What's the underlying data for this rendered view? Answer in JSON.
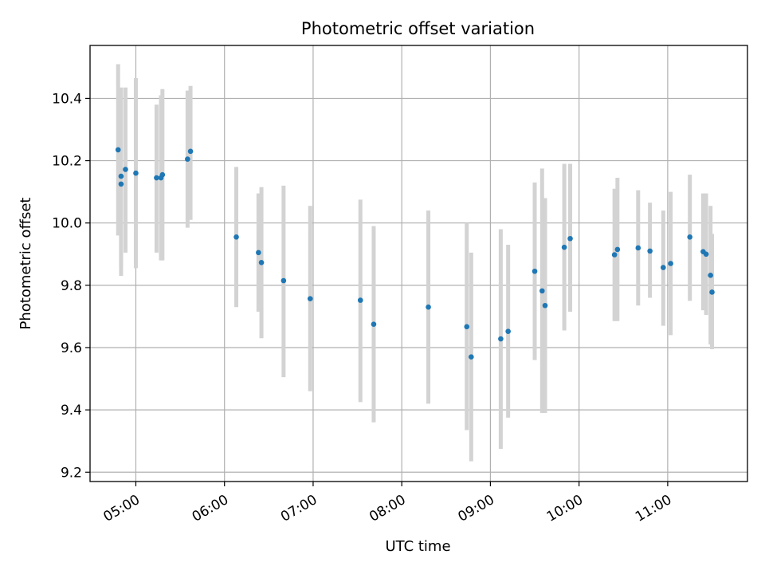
{
  "chart_data": {
    "type": "scatter",
    "title": "Photometric offset variation",
    "xlabel": "UTC time",
    "ylabel": "Photometric offset",
    "x_axis_type": "time",
    "xlim": [
      "04:29",
      "11:54"
    ],
    "ylim": [
      9.17,
      10.57
    ],
    "x_ticks": [
      "05:00",
      "06:00",
      "07:00",
      "08:00",
      "09:00",
      "10:00",
      "11:00"
    ],
    "y_ticks": [
      9.2,
      9.4,
      9.6,
      9.8,
      10.0,
      10.2,
      10.4
    ],
    "grid": true,
    "marker_color": "#1f77b4",
    "errorbar_color": "#d3d3d3",
    "points": [
      {
        "x": "04:48",
        "y": 10.235,
        "low": 9.96,
        "high": 10.51
      },
      {
        "x": "04:50",
        "y": 10.15,
        "low": 9.86,
        "high": 10.43
      },
      {
        "x": "04:50",
        "y": 10.125,
        "low": 9.83,
        "high": 10.435
      },
      {
        "x": "04:53",
        "y": 10.172,
        "low": 9.905,
        "high": 10.435
      },
      {
        "x": "05:00",
        "y": 10.16,
        "low": 9.855,
        "high": 10.465
      },
      {
        "x": "05:14",
        "y": 10.145,
        "low": 9.905,
        "high": 10.38
      },
      {
        "x": "05:17",
        "y": 10.145,
        "low": 9.88,
        "high": 10.41
      },
      {
        "x": "05:18",
        "y": 10.155,
        "low": 9.88,
        "high": 10.43
      },
      {
        "x": "05:35",
        "y": 10.205,
        "low": 9.985,
        "high": 10.425
      },
      {
        "x": "05:37",
        "y": 10.23,
        "low": 10.01,
        "high": 10.44
      },
      {
        "x": "06:08",
        "y": 9.955,
        "low": 9.73,
        "high": 10.18
      },
      {
        "x": "06:23",
        "y": 9.905,
        "low": 9.715,
        "high": 10.095
      },
      {
        "x": "06:25",
        "y": 9.873,
        "low": 9.63,
        "high": 10.115
      },
      {
        "x": "06:40",
        "y": 9.815,
        "low": 9.505,
        "high": 10.12
      },
      {
        "x": "06:58",
        "y": 9.757,
        "low": 9.46,
        "high": 10.055
      },
      {
        "x": "07:32",
        "y": 9.752,
        "low": 9.425,
        "high": 10.075
      },
      {
        "x": "07:41",
        "y": 9.675,
        "low": 9.36,
        "high": 9.99
      },
      {
        "x": "08:18",
        "y": 9.73,
        "low": 9.42,
        "high": 10.04
      },
      {
        "x": "08:44",
        "y": 9.667,
        "low": 9.335,
        "high": 10.0
      },
      {
        "x": "08:47",
        "y": 9.57,
        "low": 9.235,
        "high": 9.905
      },
      {
        "x": "09:07",
        "y": 9.628,
        "low": 9.275,
        "high": 9.98
      },
      {
        "x": "09:12",
        "y": 9.652,
        "low": 9.375,
        "high": 9.93
      },
      {
        "x": "09:30",
        "y": 9.845,
        "low": 9.56,
        "high": 10.13
      },
      {
        "x": "09:35",
        "y": 9.782,
        "low": 9.39,
        "high": 10.175
      },
      {
        "x": "09:37",
        "y": 9.735,
        "low": 9.39,
        "high": 10.08
      },
      {
        "x": "09:50",
        "y": 9.922,
        "low": 9.655,
        "high": 10.19
      },
      {
        "x": "09:54",
        "y": 9.95,
        "low": 9.715,
        "high": 10.19
      },
      {
        "x": "10:24",
        "y": 9.898,
        "low": 9.685,
        "high": 10.11
      },
      {
        "x": "10:26",
        "y": 9.915,
        "low": 9.685,
        "high": 10.145
      },
      {
        "x": "10:40",
        "y": 9.92,
        "low": 9.735,
        "high": 10.105
      },
      {
        "x": "10:48",
        "y": 9.91,
        "low": 9.76,
        "high": 10.065
      },
      {
        "x": "10:57",
        "y": 9.857,
        "low": 9.67,
        "high": 10.04
      },
      {
        "x": "11:02",
        "y": 9.87,
        "low": 9.64,
        "high": 10.1
      },
      {
        "x": "11:15",
        "y": 9.955,
        "low": 9.75,
        "high": 10.155
      },
      {
        "x": "11:24",
        "y": 9.908,
        "low": 9.72,
        "high": 10.095
      },
      {
        "x": "11:26",
        "y": 9.9,
        "low": 9.705,
        "high": 10.095
      },
      {
        "x": "11:29",
        "y": 9.832,
        "low": 9.61,
        "high": 10.055
      },
      {
        "x": "11:30",
        "y": 9.778,
        "low": 9.595,
        "high": 9.965
      }
    ]
  }
}
